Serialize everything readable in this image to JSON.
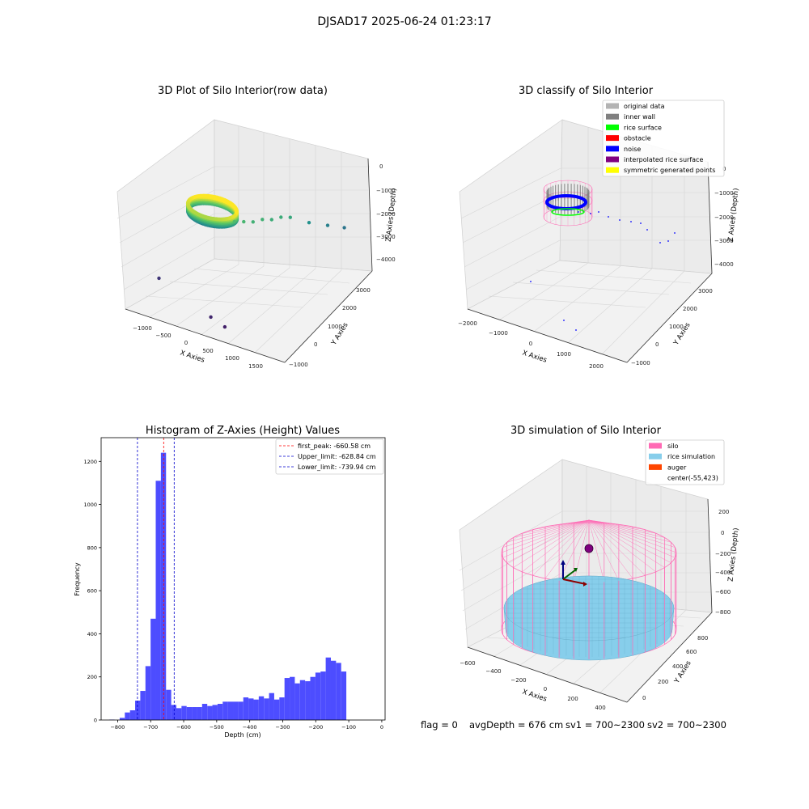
{
  "figure": {
    "suptitle": "DJSAD17 2025-06-24 01:23:17",
    "footer": {
      "flag": "flag = 0",
      "avg_depth": "avgDepth = 676 cm",
      "sv1": "sv1 = 700~2300",
      "sv2": "sv2 = 700~2300"
    }
  },
  "chart_data": [
    {
      "type": "scatter",
      "projection": "3d",
      "title": "3D Plot of Silo Interior(row data)",
      "xlabel": "X Axies",
      "ylabel": "Y Axies",
      "zlabel": "Z Axies (Depth)",
      "x_ticks": [
        "−1000",
        "−500",
        "0",
        "500",
        "1000",
        "1500"
      ],
      "y_ticks": [
        "−1000",
        "0",
        "1000",
        "2000",
        "3000"
      ],
      "z_ticks": [
        "0",
        "−1000",
        "−2000",
        "−3000",
        "−4000"
      ],
      "xlim": [
        -1300,
        1700
      ],
      "ylim": [
        -1100,
        3300
      ],
      "zlim": [
        -4500,
        100
      ],
      "colormap": "viridis",
      "ring": {
        "x_center": -200,
        "y_center": 400,
        "radius": 430,
        "z_top": -900,
        "z_bottom": -1200
      },
      "outliers": [
        {
          "x": 100,
          "y": 700,
          "z": -1500
        },
        {
          "x": 200,
          "y": 900,
          "z": -1600
        },
        {
          "x": 300,
          "y": 1100,
          "z": -1700
        },
        {
          "x": 400,
          "y": 1300,
          "z": -1700
        },
        {
          "x": 500,
          "y": 1500,
          "z": -1800
        },
        {
          "x": 600,
          "y": 1700,
          "z": -1800
        },
        {
          "x": 700,
          "y": 1900,
          "z": -1900
        },
        {
          "x": 900,
          "y": 2300,
          "z": -2300
        },
        {
          "x": 1100,
          "y": 2700,
          "z": -2600
        },
        {
          "x": 1300,
          "y": 3000,
          "z": -2800
        },
        {
          "x": -1000,
          "y": -200,
          "z": -3800
        },
        {
          "x": 200,
          "y": -800,
          "z": -4000
        },
        {
          "x": 500,
          "y": -900,
          "z": -4100
        }
      ]
    },
    {
      "type": "scatter",
      "projection": "3d",
      "title": "3D classify of Silo Interior",
      "xlabel": "X Axies",
      "ylabel": "Y Axies",
      "zlabel": "Z Axies (Depth)",
      "x_ticks": [
        "−2000",
        "−1000",
        "0",
        "1000",
        "2000"
      ],
      "y_ticks": [
        "−1000",
        "0",
        "1000",
        "2000",
        "3000"
      ],
      "z_ticks": [
        "0",
        "−1000",
        "−2000",
        "−3000",
        "−4000"
      ],
      "legend": [
        {
          "label": "original data",
          "color": "#b3b3b3"
        },
        {
          "label": "inner wall",
          "color": "#808080"
        },
        {
          "label": "rice surface",
          "color": "#00ff00"
        },
        {
          "label": "obstacle",
          "color": "#ff0000"
        },
        {
          "label": "noise",
          "color": "#0000ff"
        },
        {
          "label": "interpolated rice surface",
          "color": "#800080"
        },
        {
          "label": "symmetric generated points",
          "color": "#ffff00"
        }
      ]
    },
    {
      "type": "bar",
      "title": "Histogram of Z-Axies (Height) Values",
      "xlabel": "Depth (cm)",
      "ylabel": "Frequency",
      "xlim": [
        -850,
        10
      ],
      "ylim": [
        0,
        1310
      ],
      "x_ticks": [
        -800,
        -700,
        -600,
        -500,
        -400,
        -300,
        -200,
        -100,
        0
      ],
      "y_ticks": [
        0,
        200,
        400,
        600,
        800,
        1000,
        1200
      ],
      "bar_color": "#4d4dff",
      "bin_width": 15.6,
      "bin_starts": [
        -825,
        -809.4,
        -793.8,
        -778.2,
        -762.6,
        -747,
        -731.4,
        -715.8,
        -700.2,
        -684.6,
        -669,
        -653.4,
        -637.8,
        -622.2,
        -606.6,
        -591,
        -575.4,
        -559.8,
        -544.2,
        -528.6,
        -513,
        -497.4,
        -481.8,
        -466.2,
        -450.6,
        -435,
        -419.4,
        -403.8,
        -388.2,
        -372.6,
        -357,
        -341.4,
        -325.8,
        -310.2,
        -294.6,
        -279,
        -263.4,
        -247.8,
        -232.2,
        -216.6,
        -201,
        -185.4,
        -169.8,
        -154.2,
        -138.6,
        -123,
        -107.4,
        -91.8,
        -76.2,
        -60.6,
        -45
      ],
      "values": [
        2,
        0,
        10,
        35,
        45,
        90,
        135,
        250,
        470,
        1110,
        1240,
        140,
        70,
        55,
        65,
        60,
        60,
        60,
        75,
        65,
        70,
        75,
        85,
        85,
        85,
        85,
        105,
        100,
        95,
        110,
        100,
        125,
        95,
        105,
        195,
        200,
        170,
        185,
        180,
        200,
        220,
        225,
        290,
        275,
        265,
        225,
        0,
        0,
        0,
        0,
        0
      ],
      "vlines": [
        {
          "label": "first_peak: -660.58 cm",
          "x": -660.58,
          "color": "#ff0000"
        },
        {
          "label": "Upper_limit: -628.84 cm",
          "x": -628.84,
          "color": "#0000cc"
        },
        {
          "label": "Lower_limit: -739.94 cm",
          "x": -739.94,
          "color": "#0000cc"
        }
      ],
      "legend_placement": "top-right"
    },
    {
      "type": "surface",
      "projection": "3d",
      "title": "3D simulation of Silo Interior",
      "xlabel": "X Axies",
      "ylabel": "Y Axies",
      "zlabel": "Z Axies (Depth)",
      "x_ticks": [
        "−600",
        "−400",
        "−200",
        "0",
        "200",
        "400"
      ],
      "y_ticks": [
        "0",
        "200",
        "400",
        "600",
        "800"
      ],
      "z_ticks": [
        "200",
        "0",
        "−200",
        "−400",
        "−600",
        "−800"
      ],
      "legend": [
        {
          "label": "silo",
          "color": "#ff69b4"
        },
        {
          "label": "rice simulation",
          "color": "#87ceeb"
        },
        {
          "label": "auger",
          "color": "#ff4500"
        },
        {
          "label": "center(-55,423)",
          "color": ""
        }
      ],
      "center": {
        "x": -55,
        "y": 423
      },
      "avg_depth_cm": 676
    }
  ]
}
